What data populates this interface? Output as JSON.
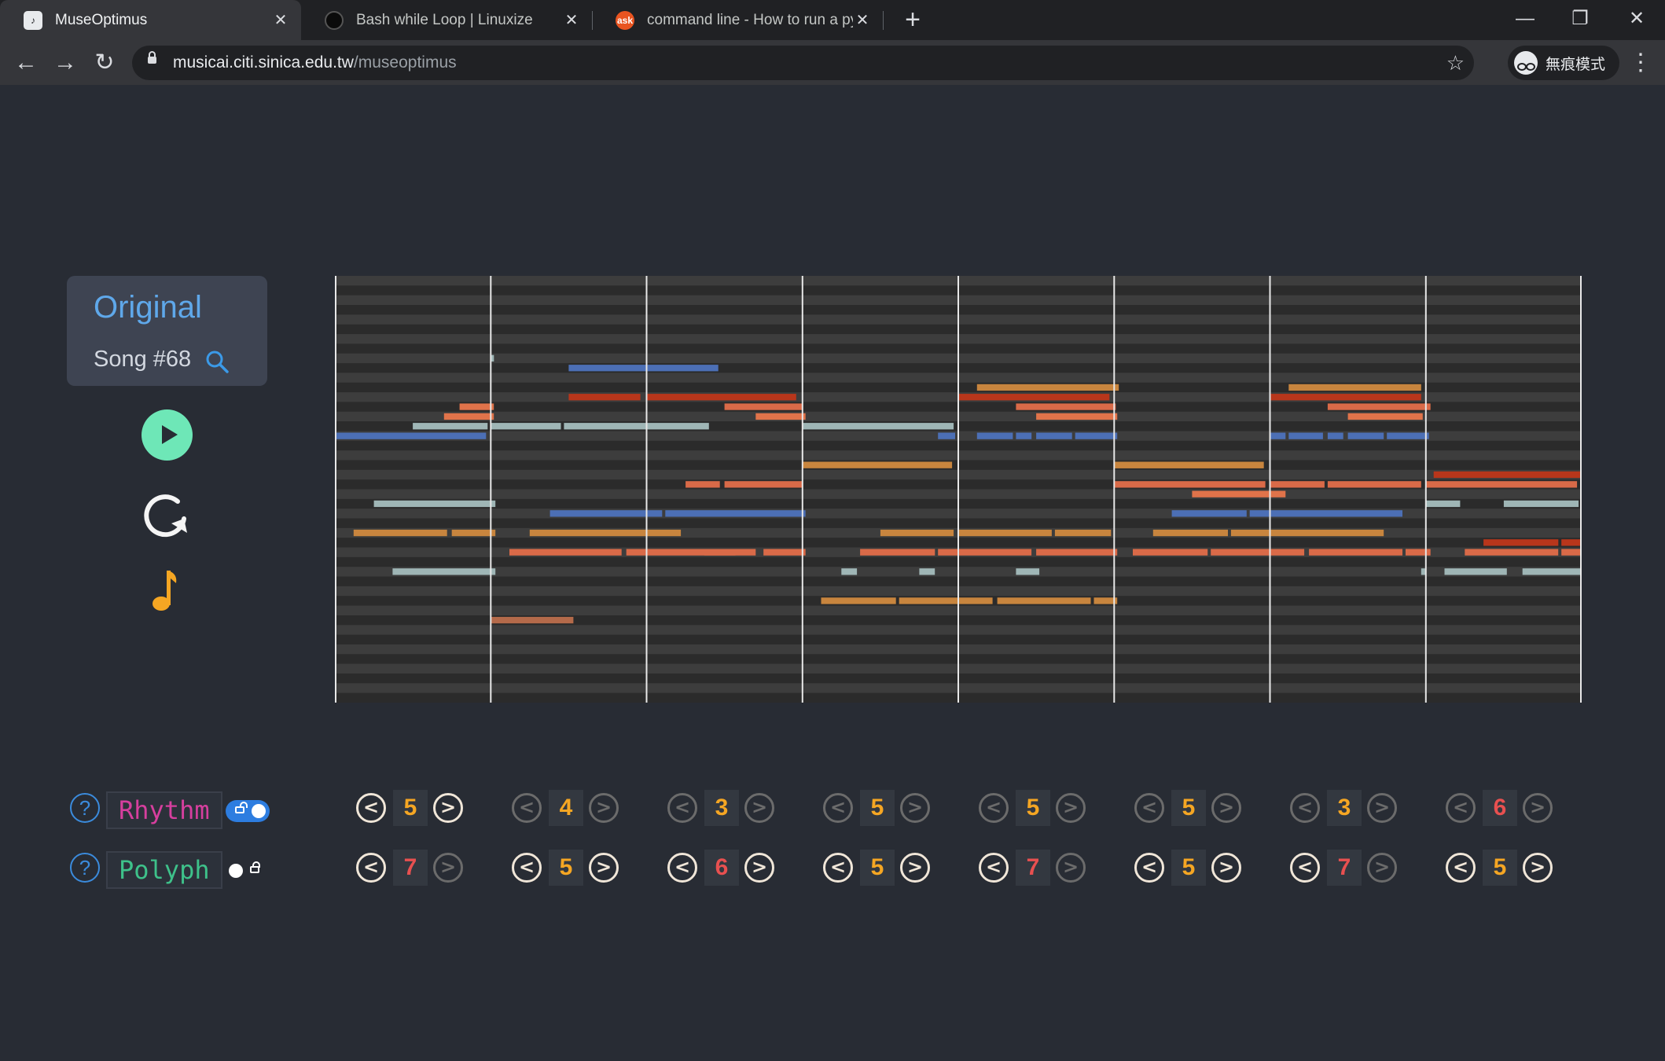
{
  "browser": {
    "tabs": [
      {
        "title": "MuseOptimus",
        "active": true,
        "favicon": "music-note-icon"
      },
      {
        "title": "Bash while Loop | Linuxize",
        "active": false,
        "favicon": "linuxize-icon"
      },
      {
        "title": "command line - How to run a py",
        "active": false,
        "favicon": "askubuntu-icon",
        "favicon_text": "ask"
      }
    ],
    "url_host": "musicai.citi.sinica.edu.tw",
    "url_path": "/museoptimus",
    "incognito_label": "無痕模式",
    "glyphs": {
      "close": "✕",
      "new_tab": "+",
      "back": "←",
      "forward": "→",
      "reload": "↻",
      "star": "☆",
      "menu": "⋮",
      "minimize": "—",
      "restore": "❐"
    }
  },
  "song": {
    "mode": "Original",
    "label": "Song #68"
  },
  "colors": {
    "rhythm": "#d63f9e",
    "polyph": "#3ec18a",
    "value_normal": "#f5a623",
    "value_high": "#e85050",
    "accent": "#5fa8ea"
  },
  "piano_roll": {
    "bars": 8,
    "pitch_rows": 44,
    "notes": [
      {
        "pitch": 8,
        "start": 1.0,
        "dur": 0.02,
        "color": "#9fb6b6"
      },
      {
        "pitch": 9,
        "start": 1.5,
        "dur": 0.96,
        "color": "#4c6fb5"
      },
      {
        "pitch": 12,
        "start": 1.5,
        "dur": 0.46,
        "color": "#b8361b"
      },
      {
        "pitch": 12,
        "start": 2.0,
        "dur": 0.96,
        "color": "#b8361b"
      },
      {
        "pitch": 13,
        "start": 0.8,
        "dur": 0.22,
        "color": "#e0734a"
      },
      {
        "pitch": 14,
        "start": 0.7,
        "dur": 0.32,
        "color": "#e0734a"
      },
      {
        "pitch": 13,
        "start": 2.5,
        "dur": 0.5,
        "color": "#d96a48"
      },
      {
        "pitch": 14,
        "start": 2.7,
        "dur": 0.32,
        "color": "#e0734a"
      },
      {
        "pitch": 15,
        "start": 0.5,
        "dur": 0.48,
        "color": "#9fb6b6"
      },
      {
        "pitch": 15,
        "start": 1.0,
        "dur": 0.45,
        "color": "#9fb6b6"
      },
      {
        "pitch": 15,
        "start": 1.47,
        "dur": 0.93,
        "color": "#9fb6b6"
      },
      {
        "pitch": 16,
        "start": 0.0,
        "dur": 0.97,
        "color": "#4c6fb5"
      },
      {
        "pitch": 19,
        "start": 3.0,
        "dur": 0.96,
        "color": "#c8853e"
      },
      {
        "pitch": 21,
        "start": 2.25,
        "dur": 0.22,
        "color": "#d96a48"
      },
      {
        "pitch": 21,
        "start": 2.5,
        "dur": 0.5,
        "color": "#d96a48"
      },
      {
        "pitch": 23,
        "start": 0.25,
        "dur": 0.78,
        "color": "#9fb6b6"
      },
      {
        "pitch": 24,
        "start": 1.38,
        "dur": 0.72,
        "color": "#4c6fb5"
      },
      {
        "pitch": 24,
        "start": 2.12,
        "dur": 0.9,
        "color": "#4c6fb5"
      },
      {
        "pitch": 26,
        "start": 0.12,
        "dur": 0.6,
        "color": "#c8853e"
      },
      {
        "pitch": 26,
        "start": 0.75,
        "dur": 0.28,
        "color": "#c8853e"
      },
      {
        "pitch": 26,
        "start": 1.25,
        "dur": 0.97,
        "color": "#c8853e"
      },
      {
        "pitch": 28,
        "start": 1.12,
        "dur": 0.72,
        "color": "#d96a48"
      },
      {
        "pitch": 28,
        "start": 1.87,
        "dur": 0.7,
        "color": "#d96a48"
      },
      {
        "pitch": 28,
        "start": 2.37,
        "dur": 0.33,
        "color": "#d96a48"
      },
      {
        "pitch": 28,
        "start": 2.75,
        "dur": 0.27,
        "color": "#d96a48"
      },
      {
        "pitch": 30,
        "start": 0.37,
        "dur": 0.66,
        "color": "#9fb6b6"
      },
      {
        "pitch": 35,
        "start": 1.0,
        "dur": 0.53,
        "color": "#b46a4a"
      },
      {
        "pitch": 11,
        "start": 4.12,
        "dur": 0.91,
        "color": "#c8853e"
      },
      {
        "pitch": 12,
        "start": 4.0,
        "dur": 0.97,
        "color": "#b8361b"
      },
      {
        "pitch": 13,
        "start": 4.37,
        "dur": 0.64,
        "color": "#d96a48"
      },
      {
        "pitch": 14,
        "start": 4.5,
        "dur": 0.52,
        "color": "#e0734a"
      },
      {
        "pitch": 15,
        "start": 3.0,
        "dur": 0.97,
        "color": "#9fb6b6"
      },
      {
        "pitch": 16,
        "start": 3.87,
        "dur": 0.11,
        "color": "#4c6fb5"
      },
      {
        "pitch": 16,
        "start": 4.12,
        "dur": 0.23,
        "color": "#4c6fb5"
      },
      {
        "pitch": 16,
        "start": 4.37,
        "dur": 0.1,
        "color": "#4c6fb5"
      },
      {
        "pitch": 16,
        "start": 4.5,
        "dur": 0.23,
        "color": "#4c6fb5"
      },
      {
        "pitch": 16,
        "start": 4.75,
        "dur": 0.27,
        "color": "#4c6fb5"
      },
      {
        "pitch": 19,
        "start": 5.0,
        "dur": 0.96,
        "color": "#c8853e"
      },
      {
        "pitch": 26,
        "start": 3.5,
        "dur": 0.47,
        "color": "#c8853e"
      },
      {
        "pitch": 26,
        "start": 4.0,
        "dur": 0.6,
        "color": "#c8853e"
      },
      {
        "pitch": 26,
        "start": 4.62,
        "dur": 0.36,
        "color": "#c8853e"
      },
      {
        "pitch": 28,
        "start": 3.37,
        "dur": 0.48,
        "color": "#d96a48"
      },
      {
        "pitch": 28,
        "start": 3.87,
        "dur": 0.6,
        "color": "#d96a48"
      },
      {
        "pitch": 28,
        "start": 4.5,
        "dur": 0.52,
        "color": "#d96a48"
      },
      {
        "pitch": 30,
        "start": 3.25,
        "dur": 0.1,
        "color": "#9fb6b6"
      },
      {
        "pitch": 30,
        "start": 3.75,
        "dur": 0.1,
        "color": "#9fb6b6"
      },
      {
        "pitch": 30,
        "start": 4.37,
        "dur": 0.15,
        "color": "#9fb6b6"
      },
      {
        "pitch": 33,
        "start": 3.12,
        "dur": 0.48,
        "color": "#c8853e"
      },
      {
        "pitch": 33,
        "start": 3.62,
        "dur": 0.6,
        "color": "#c8853e"
      },
      {
        "pitch": 33,
        "start": 4.25,
        "dur": 0.6,
        "color": "#c8853e"
      },
      {
        "pitch": 33,
        "start": 4.87,
        "dur": 0.15,
        "color": "#c8853e"
      },
      {
        "pitch": 11,
        "start": 6.12,
        "dur": 0.85,
        "color": "#c8853e"
      },
      {
        "pitch": 12,
        "start": 6.0,
        "dur": 0.97,
        "color": "#b8361b"
      },
      {
        "pitch": 13,
        "start": 6.37,
        "dur": 0.66,
        "color": "#d96a48"
      },
      {
        "pitch": 14,
        "start": 6.5,
        "dur": 0.48,
        "color": "#e0734a"
      },
      {
        "pitch": 16,
        "start": 6.0,
        "dur": 0.1,
        "color": "#4c6fb5"
      },
      {
        "pitch": 16,
        "start": 6.12,
        "dur": 0.22,
        "color": "#4c6fb5"
      },
      {
        "pitch": 16,
        "start": 6.37,
        "dur": 0.1,
        "color": "#4c6fb5"
      },
      {
        "pitch": 16,
        "start": 6.5,
        "dur": 0.23,
        "color": "#4c6fb5"
      },
      {
        "pitch": 16,
        "start": 6.75,
        "dur": 0.27,
        "color": "#4c6fb5"
      },
      {
        "pitch": 19,
        "start": 5.0,
        "dur": 0.96,
        "color": "#c8853e"
      },
      {
        "pitch": 21,
        "start": 5.0,
        "dur": 0.97,
        "color": "#d96a48"
      },
      {
        "pitch": 21,
        "start": 6.0,
        "dur": 0.35,
        "color": "#d96a48"
      },
      {
        "pitch": 21,
        "start": 6.37,
        "dur": 0.6,
        "color": "#d96a48"
      },
      {
        "pitch": 22,
        "start": 5.5,
        "dur": 0.6,
        "color": "#e0734a"
      },
      {
        "pitch": 24,
        "start": 5.37,
        "dur": 0.48,
        "color": "#4c6fb5"
      },
      {
        "pitch": 24,
        "start": 5.87,
        "dur": 0.98,
        "color": "#4c6fb5"
      },
      {
        "pitch": 26,
        "start": 5.25,
        "dur": 0.48,
        "color": "#c8853e"
      },
      {
        "pitch": 26,
        "start": 5.75,
        "dur": 0.98,
        "color": "#c8853e"
      },
      {
        "pitch": 28,
        "start": 5.12,
        "dur": 0.48,
        "color": "#d96a48"
      },
      {
        "pitch": 28,
        "start": 5.62,
        "dur": 0.6,
        "color": "#d96a48"
      },
      {
        "pitch": 28,
        "start": 6.25,
        "dur": 0.6,
        "color": "#d96a48"
      },
      {
        "pitch": 28,
        "start": 6.87,
        "dur": 0.16,
        "color": "#d96a48"
      },
      {
        "pitch": 20,
        "start": 7.05,
        "dur": 0.95,
        "color": "#b8361b"
      },
      {
        "pitch": 21,
        "start": 7.0,
        "dur": 0.97,
        "color": "#d96a48"
      },
      {
        "pitch": 23,
        "start": 7.0,
        "dur": 0.22,
        "color": "#9fb6b6"
      },
      {
        "pitch": 23,
        "start": 7.5,
        "dur": 0.48,
        "color": "#9fb6b6"
      },
      {
        "pitch": 27,
        "start": 7.37,
        "dur": 0.48,
        "color": "#b8361b"
      },
      {
        "pitch": 27,
        "start": 7.87,
        "dur": 0.13,
        "color": "#b8361b"
      },
      {
        "pitch": 28,
        "start": 7.25,
        "dur": 0.6,
        "color": "#d96a48"
      },
      {
        "pitch": 28,
        "start": 7.87,
        "dur": 0.13,
        "color": "#d96a48"
      },
      {
        "pitch": 30,
        "start": 6.97,
        "dur": 0.03,
        "color": "#9fb6b6"
      },
      {
        "pitch": 30,
        "start": 7.12,
        "dur": 0.4,
        "color": "#9fb6b6"
      },
      {
        "pitch": 30,
        "start": 7.62,
        "dur": 0.38,
        "color": "#9fb6b6"
      }
    ]
  },
  "controls": {
    "rhythm": {
      "label": "Rhythm",
      "lock": "unlocked",
      "values": [
        {
          "v": "5",
          "level": "normal",
          "left": true,
          "right": true
        },
        {
          "v": "4",
          "level": "normal",
          "left": false,
          "right": false
        },
        {
          "v": "3",
          "level": "normal",
          "left": false,
          "right": false
        },
        {
          "v": "5",
          "level": "normal",
          "left": false,
          "right": false
        },
        {
          "v": "5",
          "level": "normal",
          "left": false,
          "right": false
        },
        {
          "v": "5",
          "level": "normal",
          "left": false,
          "right": false
        },
        {
          "v": "3",
          "level": "normal",
          "left": false,
          "right": false
        },
        {
          "v": "6",
          "level": "high",
          "left": false,
          "right": false
        }
      ]
    },
    "polyph": {
      "label": "Polyph",
      "lock": "locked",
      "values": [
        {
          "v": "7",
          "level": "high",
          "left": true,
          "right": false
        },
        {
          "v": "5",
          "level": "normal",
          "left": true,
          "right": true
        },
        {
          "v": "6",
          "level": "high",
          "left": true,
          "right": true
        },
        {
          "v": "5",
          "level": "normal",
          "left": true,
          "right": true
        },
        {
          "v": "7",
          "level": "high",
          "left": true,
          "right": false
        },
        {
          "v": "5",
          "level": "normal",
          "left": true,
          "right": true
        },
        {
          "v": "7",
          "level": "high",
          "left": true,
          "right": false
        },
        {
          "v": "5",
          "level": "normal",
          "left": true,
          "right": true
        }
      ]
    }
  }
}
